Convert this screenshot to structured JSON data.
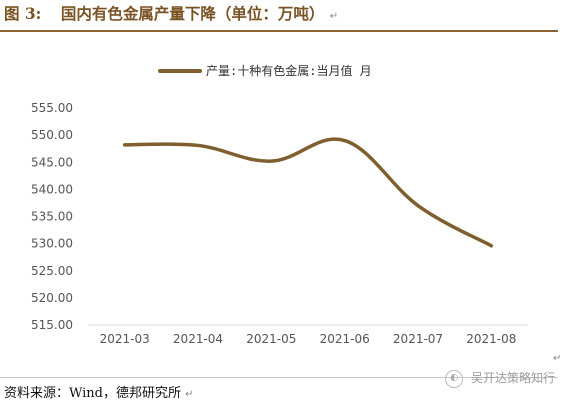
{
  "figure": {
    "label": "图 3:",
    "title": "国内有色金属产量下降（单位：万吨）",
    "source": "资料来源：Wind，德邦研究所",
    "watermark": "吴开达策略知行",
    "paragraph_mark": "↵"
  },
  "chart_data": {
    "type": "line",
    "categories": [
      "2021-03",
      "2021-04",
      "2021-05",
      "2021-06",
      "2021-07",
      "2021-08"
    ],
    "series": [
      {
        "name": "产量:十种有色金属:当月值 月",
        "values": [
          548.2,
          548.1,
          545.2,
          549.0,
          537.0,
          529.6
        ],
        "color": "#7f5f2e"
      }
    ],
    "ylim": [
      515,
      555
    ],
    "yticks": [
      "515.00",
      "520.00",
      "525.00",
      "530.00",
      "535.00",
      "540.00",
      "545.00",
      "550.00",
      "555.00"
    ],
    "legend_position": "top",
    "grid": false,
    "axis_color": "#d9d9d9"
  }
}
